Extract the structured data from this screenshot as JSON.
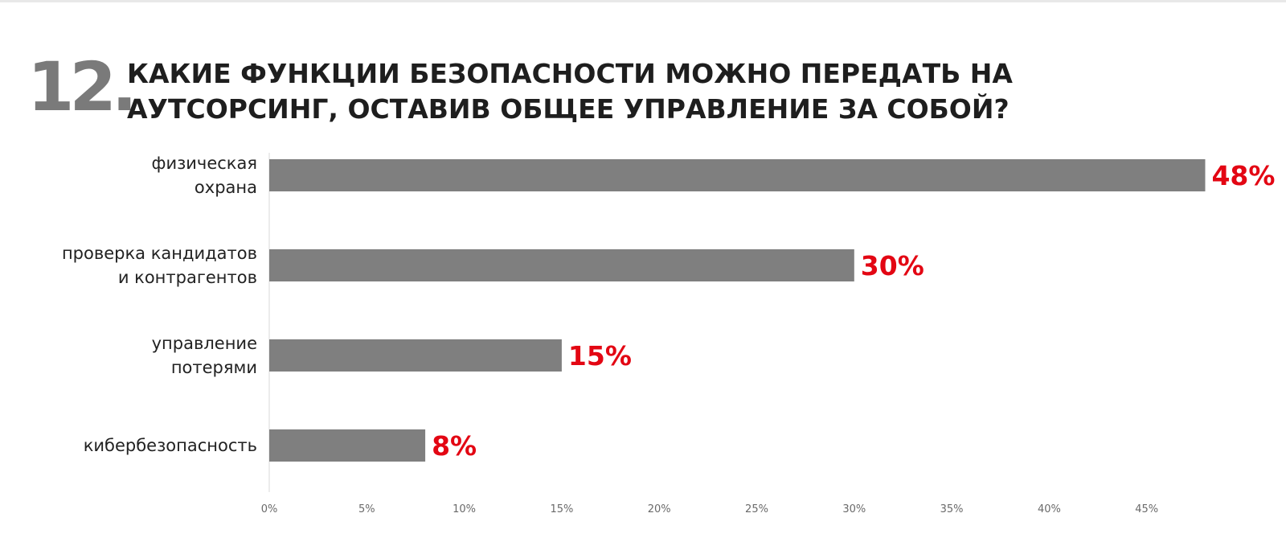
{
  "header": {
    "number": "12.",
    "title_line1": "КАКИЕ ФУНКЦИИ БЕЗОПАСНОСТИ МОЖНО ПЕРЕДАТЬ НА",
    "title_line2": "АУТСОРСИНГ, ОСТАВИВ ОБЩЕЕ УПРАВЛЕНИЕ ЗА СОБОЙ?"
  },
  "colors": {
    "bar": "#7f7f7f",
    "value_label": "#e30613",
    "axis": "#d9d9d9",
    "number": "#7a7a7a"
  },
  "chart_data": {
    "type": "bar",
    "orientation": "horizontal",
    "categories": [
      [
        "физическая",
        "охрана"
      ],
      [
        "проверка кандидатов",
        "и контрагентов"
      ],
      [
        "управление",
        "потерями"
      ],
      [
        "кибербезопасность"
      ]
    ],
    "values": [
      48,
      30,
      15,
      8
    ],
    "value_labels": [
      "48%",
      "30%",
      "15%",
      "8%"
    ],
    "xlim": [
      0,
      50
    ],
    "x_ticks": [
      0,
      5,
      10,
      15,
      20,
      25,
      30,
      35,
      40,
      45
    ],
    "x_tick_labels": [
      "0%",
      "5%",
      "10%",
      "15%",
      "20%",
      "25%",
      "30%",
      "35%",
      "40%",
      "45%"
    ],
    "grid": false,
    "legend": "none"
  }
}
